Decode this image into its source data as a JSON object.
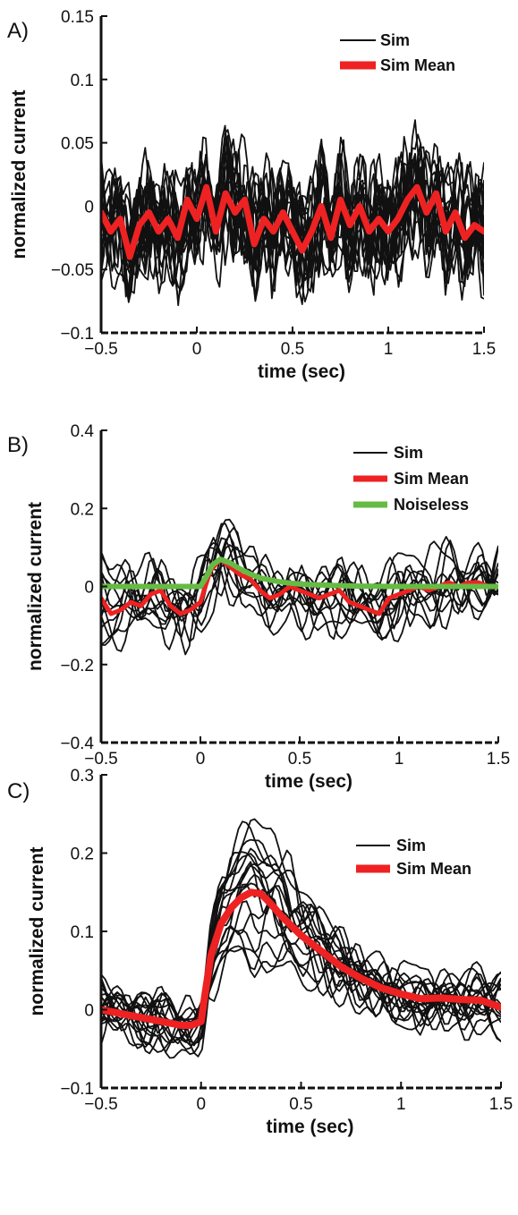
{
  "colors": {
    "sim": "#111111",
    "mean": "#ee2222",
    "noiseless": "#66bb44"
  },
  "chart_data": [
    {
      "panel": "A)",
      "type": "line",
      "xlabel": "time (sec)",
      "ylabel": "normalized current",
      "xlim": [
        -0.5,
        1.5
      ],
      "ylim": [
        -0.1,
        0.15
      ],
      "xticks": [
        -0.5,
        0,
        0.5,
        1,
        1.5
      ],
      "xtick_labels": [
        "−0.5",
        "0",
        "0.5",
        "1",
        "1.5"
      ],
      "yticks": [
        -0.1,
        -0.05,
        0,
        0.05,
        0.1,
        0.15
      ],
      "ytick_labels": [
        "−0.1",
        "−0.05",
        "0",
        "0.05",
        "0.1",
        "0.15"
      ],
      "legend_position": "top-right",
      "legend": [
        {
          "label": "Sim",
          "color": "#111111",
          "width": 2
        },
        {
          "label": "Sim Mean",
          "color": "#ee2222",
          "width": 9
        }
      ],
      "series": [
        {
          "name": "Sim Mean",
          "color": "#ee2222",
          "width": 7,
          "x": [
            -0.5,
            -0.45,
            -0.4,
            -0.35,
            -0.3,
            -0.25,
            -0.2,
            -0.15,
            -0.1,
            -0.05,
            0,
            0.05,
            0.1,
            0.15,
            0.2,
            0.25,
            0.3,
            0.35,
            0.4,
            0.45,
            0.5,
            0.55,
            0.6,
            0.65,
            0.7,
            0.75,
            0.8,
            0.85,
            0.9,
            0.95,
            1,
            1.05,
            1.1,
            1.15,
            1.2,
            1.25,
            1.3,
            1.35,
            1.4,
            1.45,
            1.5
          ],
          "y": [
            -0.005,
            -0.02,
            -0.01,
            -0.04,
            -0.015,
            -0.005,
            -0.02,
            -0.01,
            -0.025,
            0.005,
            -0.01,
            0.015,
            -0.02,
            0.01,
            -0.005,
            0.005,
            -0.03,
            -0.01,
            -0.02,
            -0.005,
            -0.02,
            -0.035,
            -0.02,
            0.0,
            -0.025,
            0.005,
            -0.015,
            0.0,
            -0.02,
            -0.01,
            -0.02,
            -0.01,
            0.005,
            0.015,
            -0.005,
            0.01,
            -0.02,
            -0.005,
            -0.025,
            -0.015,
            -0.02
          ]
        }
      ]
    },
    {
      "panel": "B)",
      "type": "line",
      "xlabel": "time (sec)",
      "ylabel": "normalized current",
      "xlim": [
        -0.5,
        1.5
      ],
      "ylim": [
        -0.4,
        0.4
      ],
      "xticks": [
        -0.5,
        0,
        0.5,
        1,
        1.5
      ],
      "xtick_labels": [
        "−0.5",
        "0",
        "0.5",
        "1",
        "1.5"
      ],
      "yticks": [
        -0.4,
        -0.2,
        0,
        0.2,
        0.4
      ],
      "ytick_labels": [
        "−0.4",
        "−0.2",
        "0",
        "0.2",
        "0.4"
      ],
      "legend_position": "top-right",
      "legend": [
        {
          "label": "Sim",
          "color": "#111111",
          "width": 2
        },
        {
          "label": "Sim Mean",
          "color": "#ee2222",
          "width": 7
        },
        {
          "label": "Noiseless",
          "color": "#66bb44",
          "width": 7
        }
      ],
      "series": [
        {
          "name": "Sim Mean",
          "color": "#ee2222",
          "width": 5,
          "x": [
            -0.5,
            -0.45,
            -0.4,
            -0.35,
            -0.3,
            -0.25,
            -0.2,
            -0.15,
            -0.1,
            -0.05,
            0,
            0.05,
            0.1,
            0.15,
            0.2,
            0.25,
            0.3,
            0.35,
            0.4,
            0.45,
            0.5,
            0.55,
            0.6,
            0.65,
            0.7,
            0.75,
            0.8,
            0.85,
            0.9,
            0.95,
            1,
            1.05,
            1.1,
            1.15,
            1.2,
            1.25,
            1.3,
            1.35,
            1.4,
            1.45,
            1.5
          ],
          "y": [
            -0.03,
            -0.07,
            -0.06,
            -0.04,
            -0.05,
            -0.02,
            -0.01,
            -0.05,
            -0.07,
            -0.06,
            -0.04,
            0.04,
            0.07,
            0.05,
            0.03,
            0.02,
            -0.01,
            -0.03,
            -0.02,
            0.0,
            -0.01,
            -0.02,
            -0.03,
            -0.02,
            -0.01,
            -0.04,
            -0.05,
            -0.06,
            -0.07,
            -0.03,
            -0.02,
            -0.01,
            0.0,
            -0.01,
            0.0,
            0.01,
            0.0,
            0.01,
            0.01,
            0.0,
            0.0
          ]
        },
        {
          "name": "Noiseless",
          "color": "#66bb44",
          "width": 6,
          "x": [
            -0.5,
            -0.4,
            -0.3,
            -0.2,
            -0.1,
            0,
            0.03,
            0.06,
            0.1,
            0.15,
            0.2,
            0.25,
            0.3,
            0.4,
            0.5,
            0.6,
            0.7,
            0.8,
            1,
            1.2,
            1.5
          ],
          "y": [
            0,
            0,
            0,
            0,
            0,
            0,
            0.025,
            0.055,
            0.07,
            0.06,
            0.045,
            0.032,
            0.022,
            0.012,
            0.006,
            0.004,
            0.002,
            0.001,
            0,
            0,
            0
          ]
        }
      ]
    },
    {
      "panel": "C)",
      "type": "line",
      "xlabel": "time (sec)",
      "ylabel": "normalized current",
      "xlim": [
        -0.5,
        1.5
      ],
      "ylim": [
        -0.1,
        0.3
      ],
      "xticks": [
        -0.5,
        0,
        0.5,
        1,
        1.5
      ],
      "xtick_labels": [
        "−0.5",
        "0",
        "0.5",
        "1",
        "1.5"
      ],
      "yticks": [
        -0.1,
        0,
        0.1,
        0.2,
        0.3
      ],
      "ytick_labels": [
        "−0.1",
        "0",
        "0.1",
        "0.2",
        "0.3"
      ],
      "legend_position": "top-right",
      "legend": [
        {
          "label": "Sim",
          "color": "#111111",
          "width": 2
        },
        {
          "label": "Sim Mean",
          "color": "#ee2222",
          "width": 9
        }
      ],
      "series": [
        {
          "name": "Sim Mean",
          "color": "#ee2222",
          "width": 8,
          "x": [
            -0.5,
            -0.4,
            -0.3,
            -0.2,
            -0.1,
            -0.05,
            0,
            0.02,
            0.05,
            0.1,
            0.15,
            0.2,
            0.25,
            0.3,
            0.35,
            0.4,
            0.5,
            0.6,
            0.7,
            0.8,
            0.9,
            1,
            1.1,
            1.2,
            1.3,
            1.4,
            1.5
          ],
          "y": [
            0,
            -0.005,
            -0.01,
            -0.015,
            -0.02,
            -0.02,
            -0.015,
            0.02,
            0.07,
            0.11,
            0.13,
            0.143,
            0.15,
            0.148,
            0.135,
            0.12,
            0.095,
            0.075,
            0.055,
            0.04,
            0.028,
            0.02,
            0.014,
            0.015,
            0.013,
            0.012,
            0.003
          ]
        }
      ]
    }
  ]
}
